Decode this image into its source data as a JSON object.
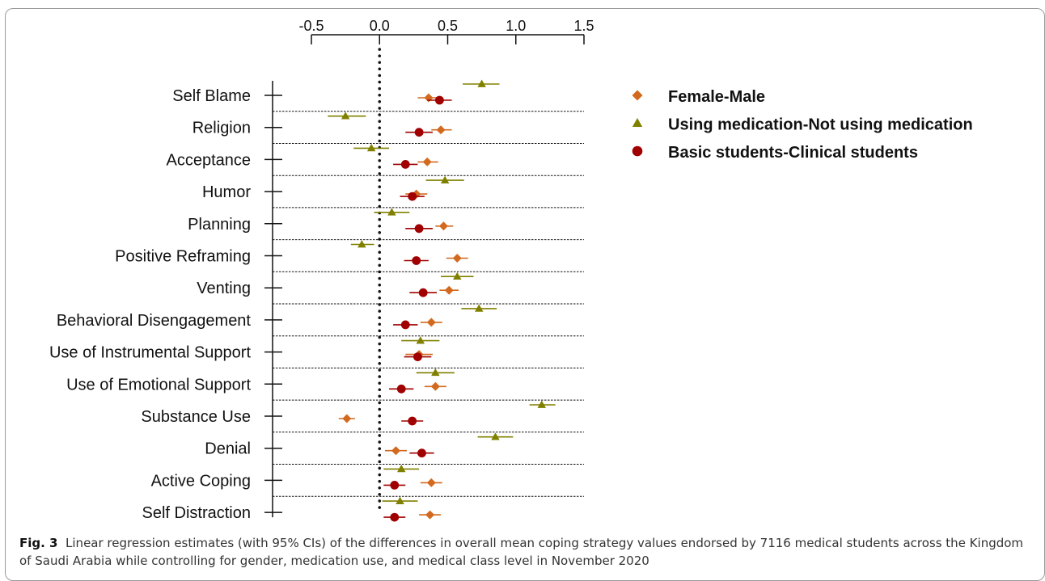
{
  "chart_data": {
    "type": "scatter",
    "subtype": "forest-plot",
    "title": "",
    "xlabel": "",
    "ylabel": "",
    "xlim": [
      -0.5,
      1.5
    ],
    "x_ticks": [
      -0.5,
      0.0,
      0.5,
      1.0,
      1.5
    ],
    "x_tick_labels": [
      "-0.5",
      "0.0",
      "0.5",
      "1.0",
      "1.5"
    ],
    "x_axis_position": "top",
    "reference_line": 0.0,
    "legend_position": "top-right",
    "categories": [
      "Self Blame",
      "Religion",
      "Acceptance",
      "Humor",
      "Planning",
      "Positive Reframing",
      "Venting",
      "Behavioral Disengagement",
      "Use of Instrumental Support",
      "Use of Emotional Support",
      "Substance Use",
      "Denial",
      "Active Coping",
      "Self Distraction"
    ],
    "series": [
      {
        "name": "Female-Male",
        "marker": "diamond",
        "color": "#d2691e",
        "values": [
          0.36,
          0.45,
          0.35,
          0.27,
          0.47,
          0.57,
          0.51,
          0.38,
          0.29,
          0.41,
          -0.24,
          0.12,
          0.38,
          0.37
        ],
        "ci_low": [
          0.28,
          0.38,
          0.28,
          0.19,
          0.41,
          0.49,
          0.44,
          0.3,
          0.19,
          0.33,
          -0.3,
          0.04,
          0.3,
          0.29
        ],
        "ci_high": [
          0.43,
          0.53,
          0.43,
          0.35,
          0.54,
          0.65,
          0.58,
          0.46,
          0.39,
          0.49,
          -0.18,
          0.2,
          0.46,
          0.45
        ]
      },
      {
        "name": "Using medication-Not using medication",
        "marker": "triangle",
        "color": "#808000",
        "values": [
          0.75,
          -0.25,
          -0.06,
          0.48,
          0.09,
          -0.13,
          0.57,
          0.73,
          0.3,
          0.41,
          1.19,
          0.85,
          0.16,
          0.15
        ],
        "ci_low": [
          0.61,
          -0.38,
          -0.19,
          0.34,
          -0.04,
          -0.21,
          0.45,
          0.6,
          0.16,
          0.27,
          1.1,
          0.72,
          0.03,
          0.02
        ],
        "ci_high": [
          0.88,
          -0.1,
          0.07,
          0.62,
          0.22,
          -0.04,
          0.69,
          0.86,
          0.44,
          0.55,
          1.29,
          0.98,
          0.29,
          0.28
        ]
      },
      {
        "name": "Basic students-Clinical students",
        "marker": "circle",
        "color": "#a00000",
        "values": [
          0.44,
          0.29,
          0.19,
          0.24,
          0.29,
          0.27,
          0.32,
          0.19,
          0.28,
          0.16,
          0.24,
          0.31,
          0.11,
          0.11
        ],
        "ci_low": [
          0.35,
          0.19,
          0.1,
          0.15,
          0.19,
          0.18,
          0.22,
          0.1,
          0.18,
          0.07,
          0.16,
          0.22,
          0.03,
          0.03
        ],
        "ci_high": [
          0.53,
          0.39,
          0.28,
          0.33,
          0.39,
          0.36,
          0.42,
          0.28,
          0.38,
          0.25,
          0.32,
          0.4,
          0.19,
          0.19
        ]
      }
    ]
  },
  "caption": {
    "label": "Fig. 3",
    "text": "Linear regression estimates (with 95% CIs) of the differences in overall mean coping strategy values endorsed by 7116 medical students across the Kingdom of Saudi Arabia while controlling for gender, medication use, and medical class level in November 2020"
  }
}
